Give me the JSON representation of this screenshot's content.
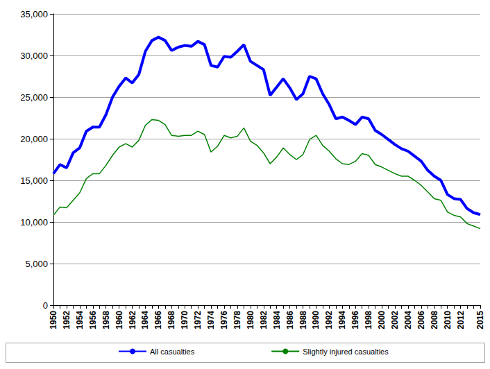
{
  "chart_data": {
    "type": "line",
    "categories": [
      "1950",
      null,
      "1952",
      null,
      "1954",
      null,
      "1956",
      null,
      "1958",
      null,
      "1960",
      null,
      "1962",
      null,
      "1964",
      null,
      "1966",
      null,
      "1968",
      null,
      "1970",
      null,
      "1972",
      null,
      "1974",
      null,
      "1976",
      null,
      "1978",
      null,
      "1980",
      null,
      "1982",
      null,
      "1984",
      null,
      "1986",
      null,
      "1988",
      null,
      "1990",
      null,
      "1992",
      null,
      "1994",
      null,
      "1996",
      null,
      "1998",
      null,
      "2000",
      null,
      "2002",
      null,
      "2004",
      null,
      "2006",
      null,
      "2008",
      null,
      "2010",
      null,
      "2012",
      null,
      null,
      "2015"
    ],
    "series": [
      {
        "name": "All casualties",
        "color": "#0000ff",
        "line_style": "solid",
        "marker": "none",
        "values": [
          15800,
          16900,
          16500,
          18300,
          18900,
          20900,
          21400,
          21400,
          22900,
          25000,
          26300,
          27300,
          26700,
          27700,
          30500,
          31800,
          32200,
          31800,
          30600,
          31000,
          31200,
          31100,
          31700,
          31300,
          28800,
          28600,
          29900,
          29800,
          30500,
          31300,
          29300,
          28800,
          28300,
          25200,
          26200,
          27200,
          26100,
          24700,
          25400,
          27500,
          27200,
          25400,
          24100,
          22400,
          22600,
          22200,
          21700,
          22600,
          22400,
          21000,
          20500,
          19900,
          19300,
          18800,
          18500,
          17900,
          17300,
          16200,
          15500,
          15000,
          13300,
          12800,
          12700,
          11600,
          11100,
          10900
        ]
      },
      {
        "name": "Slightly injured casualties",
        "color": "#008000",
        "line_style": "solid",
        "marker": "none",
        "values": [
          10800,
          11800,
          11700,
          12600,
          13500,
          15200,
          15800,
          15800,
          16800,
          18000,
          19000,
          19400,
          19000,
          19800,
          21600,
          22300,
          22200,
          21700,
          20400,
          20300,
          20400,
          20400,
          20900,
          20500,
          18400,
          19100,
          20400,
          20100,
          20300,
          21300,
          19700,
          19200,
          18300,
          17000,
          17800,
          18900,
          18100,
          17500,
          18100,
          19900,
          20400,
          19200,
          18500,
          17600,
          17000,
          16900,
          17300,
          18200,
          18000,
          16900,
          16600,
          16200,
          15800,
          15500,
          15500,
          15000,
          14400,
          13600,
          12800,
          12600,
          11200,
          10800,
          10600,
          9800,
          9500,
          9200
        ]
      }
    ],
    "ylim": [
      0,
      35000
    ],
    "yticks": [
      0,
      {
        "value": 5000,
        "label": "5,000"
      },
      {
        "value": 10000,
        "label": "10,000"
      },
      {
        "value": 15000,
        "label": "15,000"
      },
      {
        "value": 20000,
        "label": "20,000"
      },
      {
        "value": 25000,
        "label": "25,000"
      },
      {
        "value": 30000,
        "label": "30,000"
      },
      {
        "value": 35000,
        "label": "35,000"
      }
    ],
    "grid": true,
    "legend": "bottom"
  }
}
